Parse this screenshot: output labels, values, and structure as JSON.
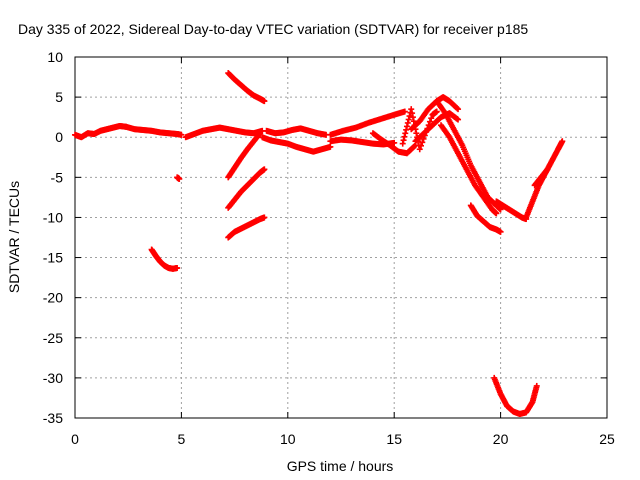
{
  "chart_data": {
    "type": "scatter",
    "title": "Day 335 of 2022, Sidereal Day-to-day VTEC variation (SDTVAR) for receiver p185",
    "xlabel": "GPS time / hours",
    "ylabel": "SDTVAR / TECUs",
    "xlim": [
      0,
      25
    ],
    "ylim": [
      -35,
      10
    ],
    "xticks": [
      0,
      5,
      10,
      15,
      20,
      25
    ],
    "yticks": [
      10,
      5,
      0,
      -5,
      -10,
      -15,
      -20,
      -25,
      -30,
      -35
    ],
    "grid": true,
    "marker": "+",
    "color": "#ff0000",
    "series": [
      {
        "name": "seg-main-0-2",
        "x": [
          0.0,
          0.3,
          0.6,
          0.9,
          1.2,
          1.5,
          1.8,
          2.1,
          2.4
        ],
        "y": [
          0.3,
          0.0,
          0.5,
          0.4,
          0.8,
          1.0,
          1.2,
          1.4,
          1.3
        ]
      },
      {
        "name": "seg-main-2-5",
        "x": [
          2.4,
          2.8,
          3.2,
          3.6,
          4.0,
          4.4,
          4.8,
          5.0
        ],
        "y": [
          1.3,
          1.0,
          0.9,
          0.8,
          0.6,
          0.5,
          0.4,
          0.3
        ]
      },
      {
        "name": "seg-dip-4",
        "x": [
          3.6,
          3.8,
          4.0,
          4.2,
          4.4,
          4.6,
          4.8
        ],
        "y": [
          -14.0,
          -14.8,
          -15.5,
          -16.0,
          -16.3,
          -16.4,
          -16.3
        ]
      },
      {
        "name": "seg-point-5",
        "x": [
          4.8,
          4.9
        ],
        "y": [
          -5.0,
          -5.2
        ]
      },
      {
        "name": "seg-5-8",
        "x": [
          5.2,
          5.6,
          6.0,
          6.4,
          6.8,
          7.2,
          7.6,
          8.0,
          8.4,
          8.8
        ],
        "y": [
          0.0,
          0.4,
          0.8,
          1.0,
          1.2,
          1.0,
          0.8,
          0.6,
          0.5,
          0.8
        ]
      },
      {
        "name": "seg-high-7-9",
        "x": [
          7.2,
          7.5,
          7.8,
          8.1,
          8.4,
          8.7,
          8.9
        ],
        "y": [
          8.0,
          7.2,
          6.5,
          5.8,
          5.2,
          4.8,
          4.5
        ]
      },
      {
        "name": "seg-rise-7-9a",
        "x": [
          7.2,
          7.5,
          7.8,
          8.1,
          8.4,
          8.7
        ],
        "y": [
          -5.0,
          -3.8,
          -2.6,
          -1.5,
          -0.5,
          0.5
        ]
      },
      {
        "name": "seg-rise-7-9b",
        "x": [
          7.2,
          7.5,
          7.8,
          8.1,
          8.4,
          8.7,
          8.9
        ],
        "y": [
          -8.8,
          -7.8,
          -6.8,
          -6.0,
          -5.2,
          -4.4,
          -4.0
        ]
      },
      {
        "name": "seg-rise-7-9c",
        "x": [
          7.2,
          7.5,
          7.8,
          8.1,
          8.4,
          8.7,
          8.9
        ],
        "y": [
          -12.5,
          -11.8,
          -11.4,
          -11.0,
          -10.6,
          -10.2,
          -10.0
        ]
      },
      {
        "name": "seg-main-8-12",
        "x": [
          8.8,
          9.2,
          9.6,
          10.0,
          10.4,
          10.8,
          11.2,
          11.6,
          12.0
        ],
        "y": [
          0.0,
          -0.4,
          -0.6,
          -0.8,
          -1.2,
          -1.5,
          -1.8,
          -1.5,
          -1.2
        ]
      },
      {
        "name": "seg-main-8-12b",
        "x": [
          9.0,
          9.4,
          9.8,
          10.2,
          10.6,
          11.0,
          11.4,
          11.8
        ],
        "y": [
          0.8,
          0.5,
          0.6,
          0.9,
          1.1,
          0.8,
          0.5,
          0.3
        ]
      },
      {
        "name": "seg-main-12-15",
        "x": [
          12.0,
          12.5,
          13.0,
          13.5,
          14.0,
          14.5,
          15.0
        ],
        "y": [
          -0.5,
          -0.3,
          -0.4,
          -0.6,
          -0.8,
          -0.9,
          -0.7
        ]
      },
      {
        "name": "seg-up-12-15",
        "x": [
          12.0,
          12.6,
          13.2,
          13.8,
          14.4,
          15.0,
          15.5
        ],
        "y": [
          0.3,
          0.8,
          1.2,
          1.8,
          2.3,
          2.8,
          3.2
        ]
      },
      {
        "name": "seg-down-14-16",
        "x": [
          14.0,
          14.4,
          14.8,
          15.2,
          15.6,
          16.0
        ],
        "y": [
          0.5,
          -0.3,
          -1.0,
          -1.8,
          -2.0,
          -1.0
        ]
      },
      {
        "name": "seg-16-18",
        "x": [
          15.8,
          16.2,
          16.6,
          17.0,
          17.3,
          17.6,
          18.0
        ],
        "y": [
          1.0,
          2.0,
          3.5,
          4.5,
          5.0,
          4.5,
          3.5
        ]
      },
      {
        "name": "seg-16-18b",
        "x": [
          16.0,
          16.4,
          16.8,
          17.2,
          17.6,
          18.0
        ],
        "y": [
          -0.5,
          0.5,
          1.5,
          2.5,
          3.0,
          2.2
        ]
      },
      {
        "name": "seg-scatter-16",
        "x": [
          15.4,
          15.8,
          16.2,
          16.8,
          17.0
        ],
        "y": [
          -0.8,
          3.5,
          -1.5,
          2.8,
          3.2
        ]
      },
      {
        "name": "seg-fall-17-20",
        "x": [
          17.0,
          17.4,
          17.8,
          18.2,
          18.6,
          19.0,
          19.4,
          19.8,
          20.0
        ],
        "y": [
          4.5,
          3.0,
          1.0,
          -1.0,
          -3.5,
          -5.5,
          -7.5,
          -8.5,
          -9.0
        ]
      },
      {
        "name": "seg-fall-17-20b",
        "x": [
          17.2,
          17.6,
          18.0,
          18.4,
          18.8,
          19.2,
          19.6,
          19.8
        ],
        "y": [
          1.5,
          0.0,
          -2.0,
          -4.0,
          -6.0,
          -7.5,
          -9.0,
          -9.5
        ]
      },
      {
        "name": "seg-dip-19-20",
        "x": [
          18.6,
          18.9,
          19.2,
          19.5,
          19.8,
          20.0
        ],
        "y": [
          -8.5,
          -9.8,
          -10.5,
          -11.2,
          -11.5,
          -11.8
        ]
      },
      {
        "name": "seg-trough-19-21",
        "x": [
          19.8,
          20.1,
          20.4,
          20.7,
          21.0,
          21.2
        ],
        "y": [
          -8.0,
          -8.5,
          -9.0,
          -9.5,
          -10.0,
          -10.2
        ]
      },
      {
        "name": "seg-deep-20-22",
        "x": [
          19.7,
          20.0,
          20.3,
          20.6,
          20.9,
          21.2,
          21.5,
          21.7
        ],
        "y": [
          -30.0,
          -32.0,
          -33.5,
          -34.2,
          -34.5,
          -34.3,
          -33.0,
          -31.0
        ]
      },
      {
        "name": "seg-recover-21-23",
        "x": [
          21.2,
          21.5,
          21.8,
          22.1,
          22.4,
          22.7,
          22.9
        ],
        "y": [
          -10.0,
          -8.0,
          -6.0,
          -4.5,
          -3.0,
          -1.5,
          -0.5
        ]
      },
      {
        "name": "seg-recover-21-23b",
        "x": [
          21.6,
          21.9,
          22.2
        ],
        "y": [
          -6.0,
          -5.0,
          -4.0
        ]
      }
    ]
  }
}
